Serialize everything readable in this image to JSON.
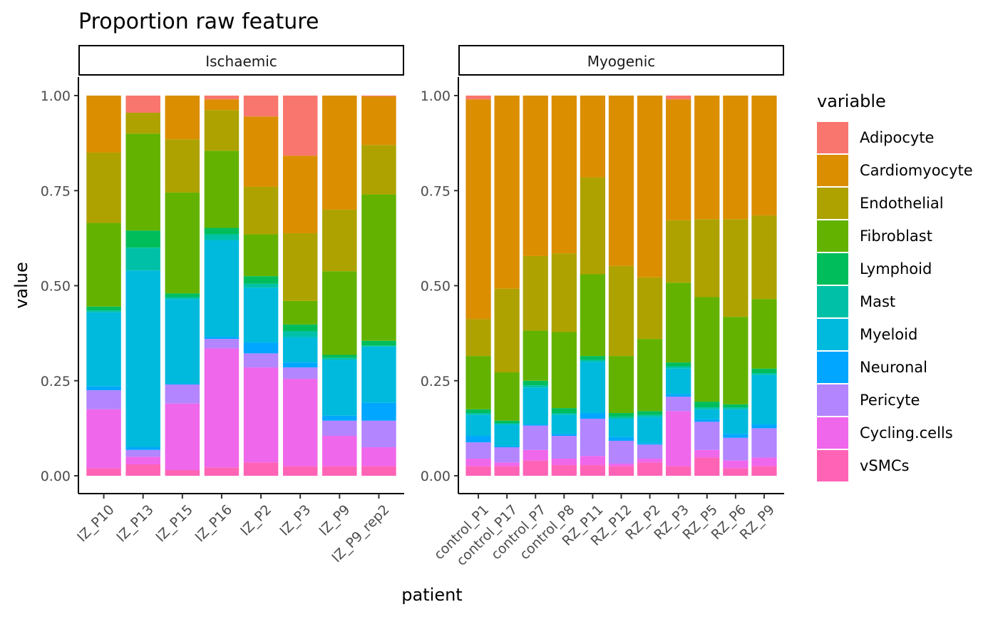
{
  "chart_data": {
    "type": "bar",
    "stacked": true,
    "title": "Proportion raw feature",
    "xlabel": "patient",
    "ylabel": "value",
    "ylim": [
      0,
      1
    ],
    "yticks": [
      "0.00",
      "0.25",
      "0.50",
      "0.75",
      "1.00"
    ],
    "legend": {
      "title": "variable",
      "placement": "right",
      "entries": [
        {
          "name": "Adipocyte",
          "color": "#F8766D"
        },
        {
          "name": "Cardiomyocyte",
          "color": "#DB8E00"
        },
        {
          "name": "Endothelial",
          "color": "#AEA200"
        },
        {
          "name": "Fibroblast",
          "color": "#64B200"
        },
        {
          "name": "Lymphoid",
          "color": "#00BD5C"
        },
        {
          "name": "Mast",
          "color": "#00C1A7"
        },
        {
          "name": "Myeloid",
          "color": "#00BADE"
        },
        {
          "name": "Neuronal",
          "color": "#00A6FF"
        },
        {
          "name": "Pericyte",
          "color": "#B385FF"
        },
        {
          "name": "Cycling.cells",
          "color": "#EF67EB"
        },
        {
          "name": "vSMCs",
          "color": "#FF63B6"
        }
      ]
    },
    "stack_order_bottom_to_top": [
      "vSMCs",
      "Cycling.cells",
      "Pericyte",
      "Neuronal",
      "Myeloid",
      "Mast",
      "Lymphoid",
      "Fibroblast",
      "Endothelial",
      "Cardiomyocyte",
      "Adipocyte"
    ],
    "facets": [
      {
        "name": "Ischaemic",
        "categories": [
          "IZ_P10",
          "IZ_P13",
          "IZ_P15",
          "IZ_P16",
          "IZ_P2",
          "IZ_P3",
          "IZ_P9",
          "IZ_P9_rep2"
        ],
        "cumulative_tops": [
          [
            0.02,
            0.175,
            0.225,
            0.235,
            0.43,
            0.435,
            0.445,
            0.665,
            0.85,
            1.0,
            1.0
          ],
          [
            0.03,
            0.05,
            0.068,
            0.075,
            0.54,
            0.6,
            0.645,
            0.9,
            0.955,
            0.955,
            1.0
          ],
          [
            0.015,
            0.19,
            0.24,
            0.242,
            0.465,
            0.47,
            0.48,
            0.745,
            0.885,
            1.0,
            1.0
          ],
          [
            0.022,
            0.335,
            0.36,
            0.365,
            0.62,
            0.635,
            0.652,
            0.855,
            0.962,
            0.99,
            1.0
          ],
          [
            0.035,
            0.285,
            0.322,
            0.35,
            0.495,
            0.505,
            0.525,
            0.635,
            0.76,
            0.945,
            1.0
          ],
          [
            0.025,
            0.255,
            0.285,
            0.298,
            0.365,
            0.38,
            0.398,
            0.46,
            0.638,
            0.842,
            1.0
          ],
          [
            0.025,
            0.105,
            0.145,
            0.158,
            0.305,
            0.31,
            0.318,
            0.538,
            0.7,
            1.0,
            1.0
          ],
          [
            0.025,
            0.075,
            0.145,
            0.192,
            0.34,
            0.342,
            0.355,
            0.74,
            0.87,
            0.998,
            1.0
          ]
        ]
      },
      {
        "name": "Myogenic",
        "categories": [
          "control_P1",
          "control_P17",
          "control_P7",
          "control_P8",
          "RZ_P11",
          "RZ_P12",
          "RZ_P2",
          "RZ_P3",
          "RZ_P5",
          "RZ_P6",
          "RZ_P9"
        ],
        "cumulative_tops": [
          [
            0.025,
            0.045,
            0.088,
            0.105,
            0.16,
            0.165,
            0.175,
            0.315,
            0.412,
            0.99,
            1.0
          ],
          [
            0.025,
            0.035,
            0.075,
            0.078,
            0.135,
            0.138,
            0.145,
            0.272,
            0.492,
            1.0,
            1.0
          ],
          [
            0.04,
            0.068,
            0.132,
            0.135,
            0.232,
            0.238,
            0.25,
            0.382,
            0.578,
            1.0,
            1.0
          ],
          [
            0.028,
            0.045,
            0.105,
            0.11,
            0.16,
            0.165,
            0.178,
            0.378,
            0.585,
            1.0,
            1.0
          ],
          [
            0.028,
            0.052,
            0.15,
            0.165,
            0.3,
            0.305,
            0.315,
            0.53,
            0.785,
            1.0,
            1.0
          ],
          [
            0.025,
            0.032,
            0.092,
            0.102,
            0.15,
            0.155,
            0.165,
            0.315,
            0.552,
            1.0,
            1.0
          ],
          [
            0.035,
            0.045,
            0.082,
            0.085,
            0.155,
            0.16,
            0.17,
            0.36,
            0.522,
            1.0,
            1.0
          ],
          [
            0.025,
            0.17,
            0.208,
            0.215,
            0.282,
            0.288,
            0.298,
            0.508,
            0.672,
            0.99,
            1.0
          ],
          [
            0.048,
            0.068,
            0.142,
            0.148,
            0.175,
            0.18,
            0.195,
            0.47,
            0.675,
            1.0,
            1.0
          ],
          [
            0.02,
            0.04,
            0.1,
            0.11,
            0.175,
            0.18,
            0.188,
            0.418,
            0.675,
            1.0,
            1.0
          ],
          [
            0.025,
            0.048,
            0.125,
            0.135,
            0.265,
            0.27,
            0.282,
            0.465,
            0.685,
            1.0,
            1.0
          ]
        ]
      }
    ]
  }
}
